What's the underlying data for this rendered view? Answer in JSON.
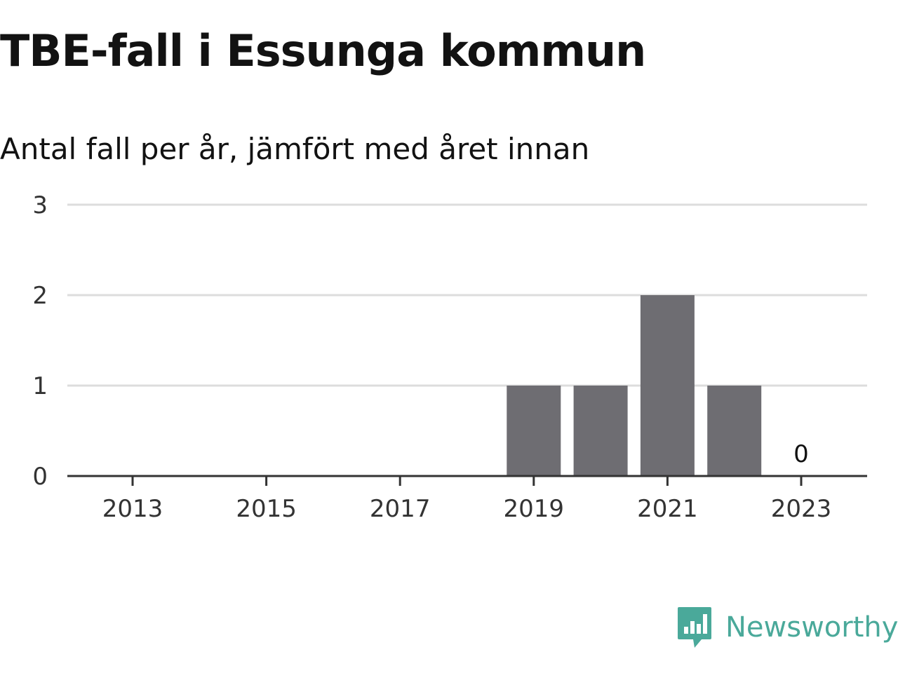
{
  "header": {
    "title": "TBE-fall i Essunga kommun",
    "subtitle": "Antal fall per år, jämfört med året innan"
  },
  "brand": {
    "name": "Newsworthy",
    "icon": "newsworthy-logo-icon",
    "color": "#4aa99a"
  },
  "colors": {
    "bar": "#6e6d72",
    "grid": "#dddddd",
    "axis": "#333333"
  },
  "chart_data": {
    "type": "bar",
    "title": "TBE-fall i Essunga kommun",
    "subtitle": "Antal fall per år, jämfört med året innan",
    "xlabel": "",
    "ylabel": "",
    "ylim": [
      0,
      3
    ],
    "y_ticks": [
      "0",
      "1",
      "2",
      "3"
    ],
    "x_ticks": [
      "2013",
      "2015",
      "2017",
      "2019",
      "2021",
      "2023"
    ],
    "categories": [
      "2019",
      "2020",
      "2021",
      "2022",
      "2023"
    ],
    "values": [
      1,
      1,
      2,
      1,
      0
    ],
    "data_labels": [
      {
        "category": "2023",
        "text": "0"
      }
    ],
    "grid": true
  }
}
